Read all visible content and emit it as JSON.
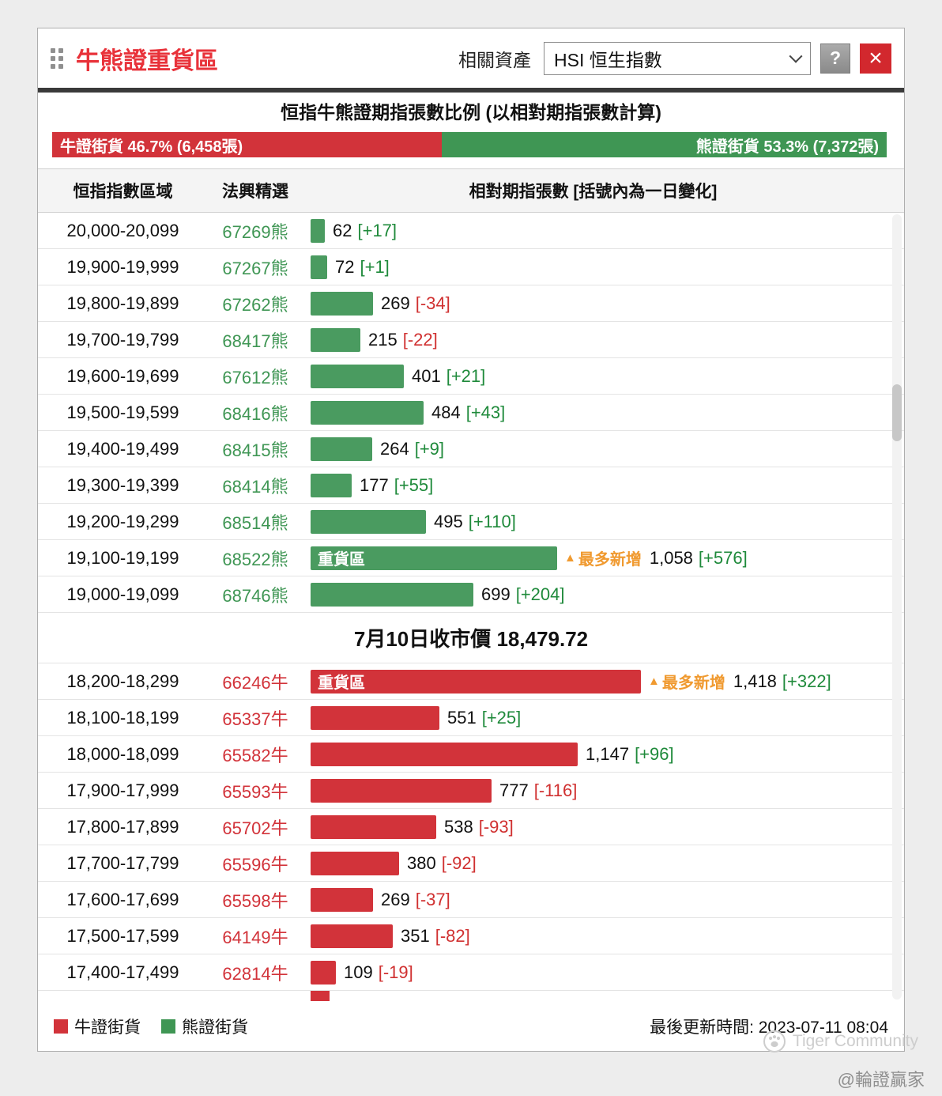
{
  "header": {
    "title": "牛熊證重貨區",
    "related_asset_label": "相關資產",
    "asset_select_value": "HSI 恒生指數",
    "help_label": "?"
  },
  "icons": {
    "close": "×",
    "most_added_triangle": "▲"
  },
  "ratio": {
    "heading": "恒指牛熊證期指張數比例 (以相對期指張數計算)",
    "bull": {
      "label": "牛證街貨 46.7% (6,458張)",
      "pct": 46.7
    },
    "bear": {
      "label": "熊證街貨 53.3% (7,372張)",
      "pct": 53.3
    }
  },
  "table": {
    "headers": {
      "range": "恒指指數區域",
      "picks": "法興精選",
      "positions": "相對期指張數 [括號內為一日變化]"
    },
    "heavy_zone_label": "重貨區",
    "most_added_label": "最多新增",
    "close_price_row": "7月10日收市價 18,479.72",
    "bear_rows": [
      {
        "range": "20,000-20,099",
        "code": "67269熊",
        "value": 62,
        "value_label": "62",
        "change": "[+17]"
      },
      {
        "range": "19,900-19,999",
        "code": "67267熊",
        "value": 72,
        "value_label": "72",
        "change": "[+1]"
      },
      {
        "range": "19,800-19,899",
        "code": "67262熊",
        "value": 269,
        "value_label": "269",
        "change": "[-34]"
      },
      {
        "range": "19,700-19,799",
        "code": "68417熊",
        "value": 215,
        "value_label": "215",
        "change": "[-22]"
      },
      {
        "range": "19,600-19,699",
        "code": "67612熊",
        "value": 401,
        "value_label": "401",
        "change": "[+21]"
      },
      {
        "range": "19,500-19,599",
        "code": "68416熊",
        "value": 484,
        "value_label": "484",
        "change": "[+43]"
      },
      {
        "range": "19,400-19,499",
        "code": "68415熊",
        "value": 264,
        "value_label": "264",
        "change": "[+9]"
      },
      {
        "range": "19,300-19,399",
        "code": "68414熊",
        "value": 177,
        "value_label": "177",
        "change": "[+55]"
      },
      {
        "range": "19,200-19,299",
        "code": "68514熊",
        "value": 495,
        "value_label": "495",
        "change": "[+110]"
      },
      {
        "range": "19,100-19,199",
        "code": "68522熊",
        "value": 1058,
        "value_label": "1,058",
        "change": "[+576]",
        "heavy": true
      },
      {
        "range": "19,000-19,099",
        "code": "68746熊",
        "value": 699,
        "value_label": "699",
        "change": "[+204]"
      }
    ],
    "bull_rows": [
      {
        "range": "18,200-18,299",
        "code": "66246牛",
        "value": 1418,
        "value_label": "1,418",
        "change": "[+322]",
        "heavy": true
      },
      {
        "range": "18,100-18,199",
        "code": "65337牛",
        "value": 551,
        "value_label": "551",
        "change": "[+25]"
      },
      {
        "range": "18,000-18,099",
        "code": "65582牛",
        "value": 1147,
        "value_label": "1,147",
        "change": "[+96]"
      },
      {
        "range": "17,900-17,999",
        "code": "65593牛",
        "value": 777,
        "value_label": "777",
        "change": "[-116]"
      },
      {
        "range": "17,800-17,899",
        "code": "65702牛",
        "value": 538,
        "value_label": "538",
        "change": "[-93]"
      },
      {
        "range": "17,700-17,799",
        "code": "65596牛",
        "value": 380,
        "value_label": "380",
        "change": "[-92]"
      },
      {
        "range": "17,600-17,699",
        "code": "65598牛",
        "value": 269,
        "value_label": "269",
        "change": "[-37]"
      },
      {
        "range": "17,500-17,599",
        "code": "64149牛",
        "value": 351,
        "value_label": "351",
        "change": "[-82]"
      },
      {
        "range": "17,400-17,499",
        "code": "62814牛",
        "value": 109,
        "value_label": "109",
        "change": "[-19]"
      }
    ]
  },
  "footer": {
    "legend": [
      {
        "key": "bull",
        "label": "牛證街貨"
      },
      {
        "key": "bear",
        "label": "熊證街貨"
      }
    ],
    "updated": "最後更新時間: 2023-07-11 08:04"
  },
  "watermark": {
    "community": "Tiger Community",
    "handle": "@輪證贏家"
  },
  "colors": {
    "bull_red": "#d2333a",
    "bear_green": "#3f9654",
    "accent_orange": "#f09a30",
    "title_red": "#e8323a"
  }
}
